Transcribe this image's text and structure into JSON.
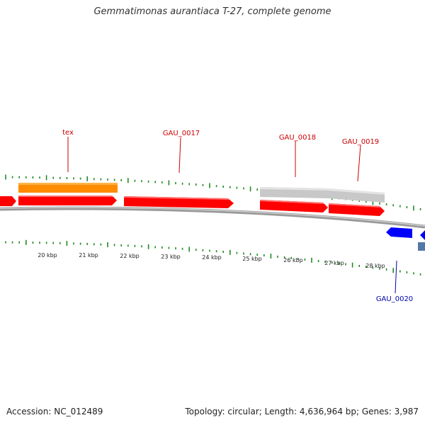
{
  "title": "Gemmatimonas aurantiaca T-27, complete genome",
  "footer": {
    "accession": "Accession: NC_012489",
    "summary": "Topology: circular; Length: 4,636,964 bp; Genes: 3,987"
  },
  "colors": {
    "forward_gene": "#ff0000",
    "reverse_gene": "#0000ff",
    "rna": "#ff8c00",
    "region": "#c8c8c8",
    "gc_skew": "#228b22",
    "backbone": "#808080",
    "forward_label": "#cc0000",
    "reverse_label": "#0000aa"
  },
  "scale_labels": [
    "20 kbp",
    "21 kbp",
    "22 kbp",
    "23 kbp",
    "24 kbp",
    "25 kbp",
    "26 kbp",
    "27 kbp",
    "28 kbp"
  ],
  "gene_labels": [
    {
      "id": "tex",
      "strand": "forward"
    },
    {
      "id": "GAU_0017",
      "strand": "forward"
    },
    {
      "id": "GAU_0018",
      "strand": "forward"
    },
    {
      "id": "GAU_0019",
      "strand": "forward"
    },
    {
      "id": "GAU_0020",
      "strand": "reverse"
    }
  ]
}
